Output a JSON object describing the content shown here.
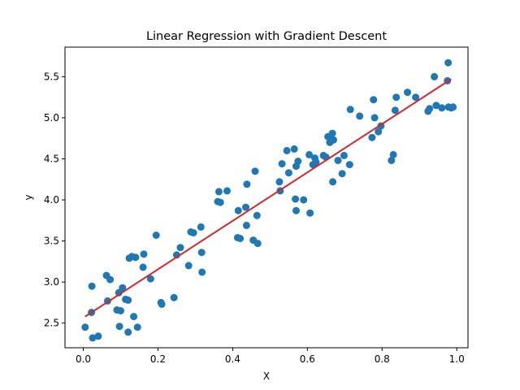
{
  "chart_data": {
    "type": "scatter",
    "title": "Linear Regression with Gradient Descent",
    "xlabel": "X",
    "ylabel": "y",
    "xlim": [
      -0.049,
      1.03
    ],
    "ylim": [
      2.2,
      5.86
    ],
    "xticks": [
      "0.0",
      "0.2",
      "0.4",
      "0.6",
      "0.8",
      "1.0"
    ],
    "yticks": [
      "2.5",
      "3.0",
      "3.5",
      "4.0",
      "4.5",
      "5.0",
      "5.5"
    ],
    "grid": false,
    "colors": {
      "points": "#1f77b4",
      "line": "#d62728"
    },
    "series": [
      {
        "type": "scatter",
        "points": [
          [
            0.005,
            2.45
          ],
          [
            0.022,
            2.63
          ],
          [
            0.023,
            2.95
          ],
          [
            0.025,
            2.32
          ],
          [
            0.04,
            2.34
          ],
          [
            0.062,
            3.08
          ],
          [
            0.065,
            2.77
          ],
          [
            0.072,
            3.03
          ],
          [
            0.09,
            2.66
          ],
          [
            0.095,
            2.87
          ],
          [
            0.097,
            2.46
          ],
          [
            0.1,
            2.65
          ],
          [
            0.105,
            2.93
          ],
          [
            0.113,
            2.79
          ],
          [
            0.12,
            2.78
          ],
          [
            0.12,
            2.39
          ],
          [
            0.123,
            3.29
          ],
          [
            0.13,
            3.31
          ],
          [
            0.135,
            2.58
          ],
          [
            0.14,
            3.3
          ],
          [
            0.145,
            2.45
          ],
          [
            0.16,
            3.18
          ],
          [
            0.162,
            3.34
          ],
          [
            0.18,
            3.04
          ],
          [
            0.195,
            3.57
          ],
          [
            0.208,
            2.75
          ],
          [
            0.21,
            2.73
          ],
          [
            0.243,
            2.81
          ],
          [
            0.25,
            3.33
          ],
          [
            0.26,
            3.42
          ],
          [
            0.282,
            3.2
          ],
          [
            0.288,
            3.61
          ],
          [
            0.295,
            3.6
          ],
          [
            0.315,
            3.67
          ],
          [
            0.317,
            3.36
          ],
          [
            0.318,
            3.12
          ],
          [
            0.36,
            3.98
          ],
          [
            0.363,
            4.1
          ],
          [
            0.367,
            3.97
          ],
          [
            0.385,
            4.11
          ],
          [
            0.413,
            3.54
          ],
          [
            0.415,
            3.87
          ],
          [
            0.42,
            3.53
          ],
          [
            0.435,
            3.91
          ],
          [
            0.438,
            4.19
          ],
          [
            0.437,
            3.69
          ],
          [
            0.455,
            3.51
          ],
          [
            0.46,
            4.35
          ],
          [
            0.465,
            3.81
          ],
          [
            0.467,
            3.47
          ],
          [
            0.525,
            4.22
          ],
          [
            0.527,
            4.11
          ],
          [
            0.532,
            4.44
          ],
          [
            0.545,
            4.6
          ],
          [
            0.55,
            4.33
          ],
          [
            0.565,
            4.62
          ],
          [
            0.568,
            4.01
          ],
          [
            0.57,
            4.41
          ],
          [
            0.57,
            3.87
          ],
          [
            0.575,
            4.47
          ],
          [
            0.59,
            4.0
          ],
          [
            0.605,
            4.55
          ],
          [
            0.607,
            3.84
          ],
          [
            0.615,
            4.43
          ],
          [
            0.62,
            4.51
          ],
          [
            0.623,
            4.46
          ],
          [
            0.643,
            4.54
          ],
          [
            0.65,
            4.52
          ],
          [
            0.655,
            4.77
          ],
          [
            0.66,
            4.7
          ],
          [
            0.667,
            4.81
          ],
          [
            0.668,
            4.22
          ],
          [
            0.67,
            4.73
          ],
          [
            0.682,
            4.48
          ],
          [
            0.693,
            4.32
          ],
          [
            0.698,
            4.54
          ],
          [
            0.713,
            4.43
          ],
          [
            0.715,
            5.1
          ],
          [
            0.74,
            5.02
          ],
          [
            0.773,
            4.76
          ],
          [
            0.777,
            5.22
          ],
          [
            0.78,
            5.0
          ],
          [
            0.79,
            4.83
          ],
          [
            0.797,
            4.9
          ],
          [
            0.825,
            4.48
          ],
          [
            0.83,
            4.55
          ],
          [
            0.835,
            5.09
          ],
          [
            0.838,
            5.25
          ],
          [
            0.868,
            5.31
          ],
          [
            0.89,
            5.25
          ],
          [
            0.923,
            5.08
          ],
          [
            0.927,
            5.11
          ],
          [
            0.94,
            5.5
          ],
          [
            0.945,
            5.15
          ],
          [
            0.96,
            5.12
          ],
          [
            0.975,
            5.45
          ],
          [
            0.977,
            5.67
          ],
          [
            0.978,
            5.13
          ],
          [
            0.985,
            5.12
          ],
          [
            0.99,
            5.13
          ]
        ]
      },
      {
        "type": "line",
        "points": [
          [
            0.005,
            2.58
          ],
          [
            0.985,
            5.47
          ]
        ]
      }
    ]
  }
}
